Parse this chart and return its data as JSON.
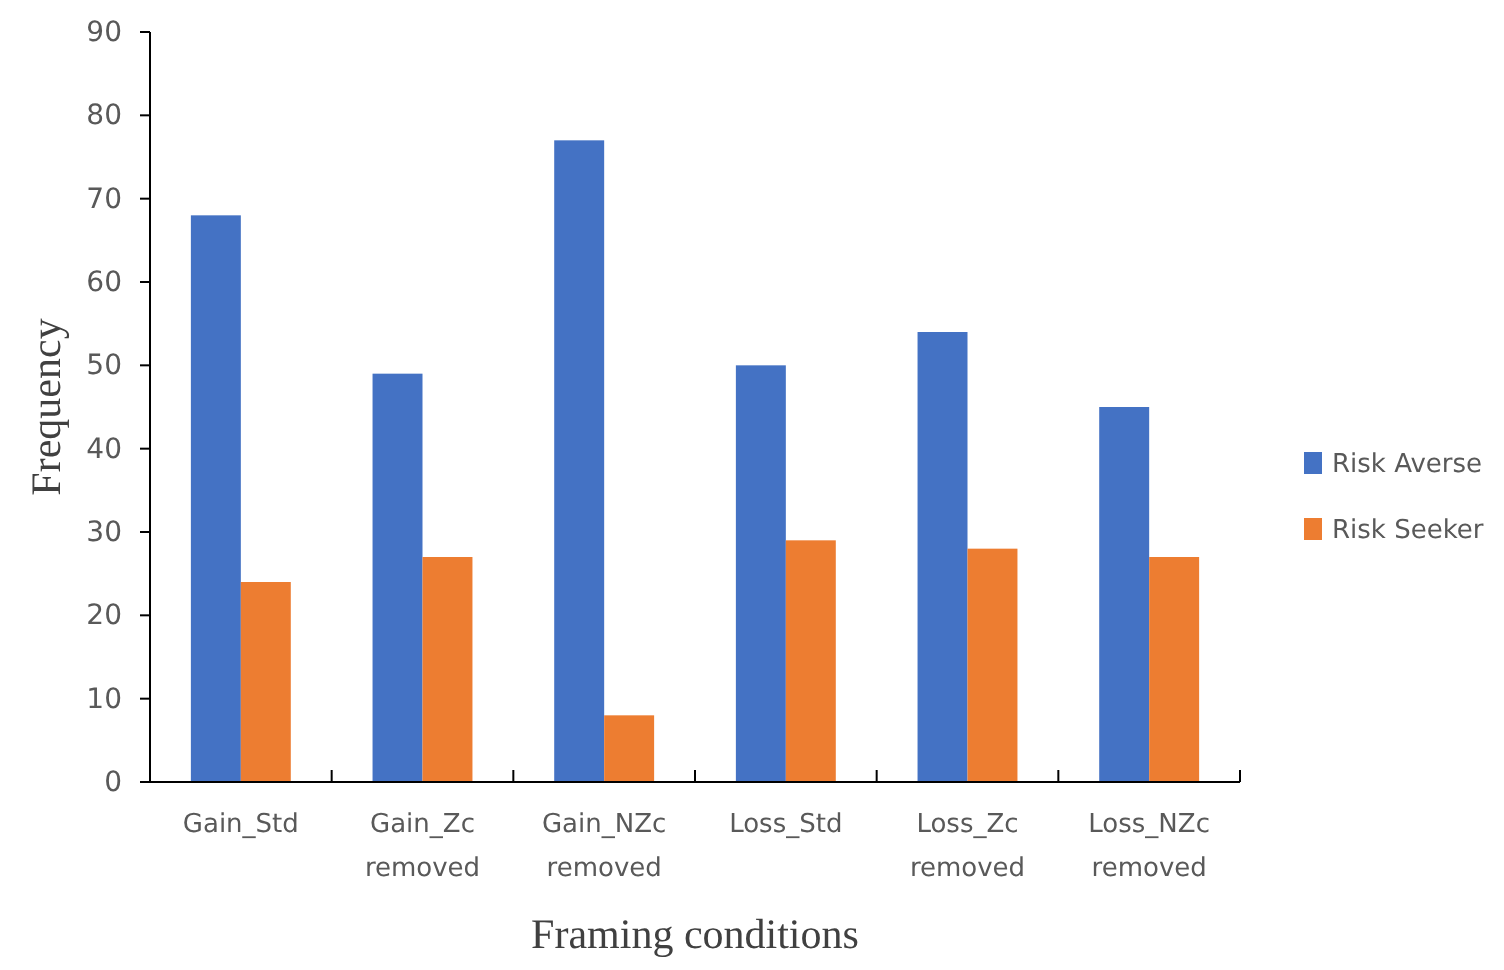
{
  "chart_data": {
    "type": "bar",
    "xlabel": "Framing conditions",
    "ylabel": "Frequency",
    "categories": [
      "Gain_Std",
      "Gain_Zc removed",
      "Gain_NZc removed",
      "Loss_Std",
      "Loss_Zc removed",
      "Loss_NZc removed"
    ],
    "series": [
      {
        "name": "Risk Averse",
        "color": "#4472c4",
        "values": [
          68,
          49,
          77,
          50,
          54,
          45
        ]
      },
      {
        "name": "Risk Seeker",
        "color": "#ed7d31",
        "values": [
          24,
          27,
          8,
          29,
          28,
          27
        ]
      }
    ],
    "ylim": [
      0,
      90
    ],
    "yticks": [
      0,
      10,
      20,
      30,
      40,
      50,
      60,
      70,
      80,
      90
    ],
    "grid": false,
    "legend": "right"
  }
}
